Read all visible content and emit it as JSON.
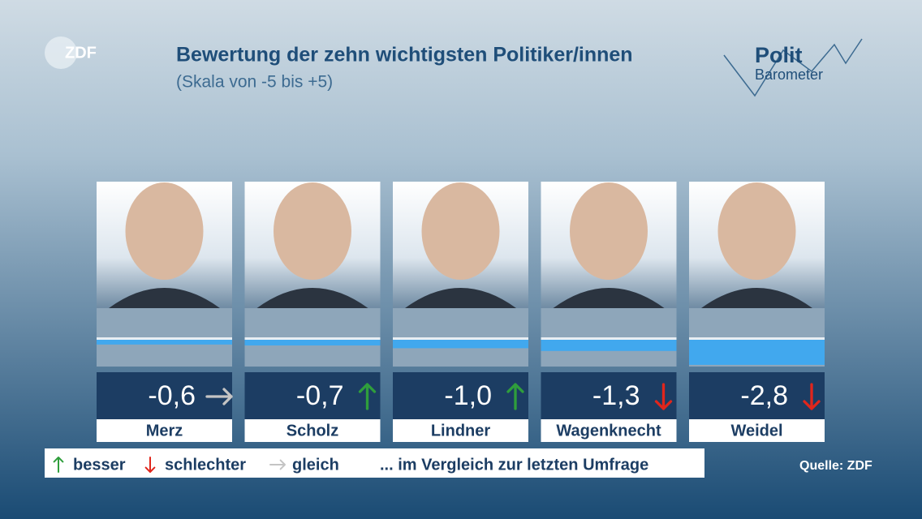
{
  "chart_data": {
    "type": "bar",
    "title": "Bewertung der zehn wichtigsten Politiker/innen",
    "subtitle": "(Skala von -5 bis +5)",
    "logo": "ZDF",
    "brand": [
      "Polit",
      "Barometer"
    ],
    "categories": [
      "Merz",
      "Scholz",
      "Lindner",
      "Wagenknecht",
      "Weidel"
    ],
    "values": [
      -0.6,
      -0.7,
      -1.0,
      -1.3,
      -2.8
    ],
    "value_labels": [
      "-0,6",
      "-0,7",
      "-1,0",
      "-1,3",
      "-2,8"
    ],
    "trends": [
      "gleich",
      "besser",
      "besser",
      "schlechter",
      "schlechter"
    ],
    "color": "#41a8ee",
    "ylim": [
      -5,
      5
    ],
    "legend": [
      {
        "label": "besser",
        "color": "#2f9e3c"
      },
      {
        "label": "schlechter",
        "color": "#e0261c"
      },
      {
        "label": "gleich",
        "color": "#c4c4c4"
      }
    ],
    "legend_note": "... im Vergleich zur letzten Umfrage",
    "source": "Quelle: ZDF"
  }
}
